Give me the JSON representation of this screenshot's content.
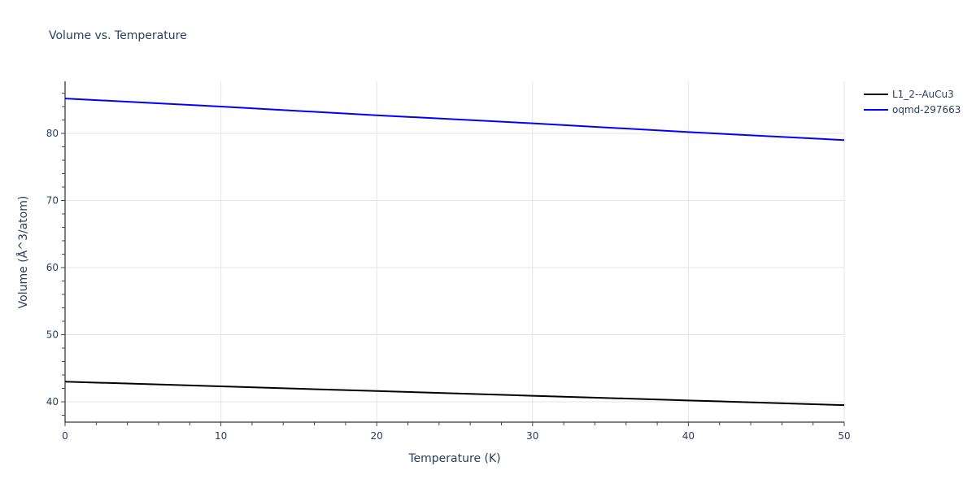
{
  "chart_data": {
    "type": "line",
    "title": "Volume vs. Temperature",
    "xlabel": "Temperature (K)",
    "ylabel": "Volume (Å^3/atom)",
    "xlim": [
      0,
      50
    ],
    "ylim": [
      36.97,
      87.76
    ],
    "x_ticks": [
      0,
      10,
      20,
      30,
      40,
      50
    ],
    "y_ticks": [
      40,
      50,
      60,
      70,
      80
    ],
    "x_minor_step": 2,
    "y_minor_step": 2,
    "grid": true,
    "legend_position": "top-right-outside",
    "x": [
      0,
      10,
      20,
      30,
      40,
      50
    ],
    "series": [
      {
        "name": "L1_2--AuCu3",
        "color": "#000000",
        "values": [
          43.0,
          42.3,
          41.6,
          40.9,
          40.2,
          39.5
        ]
      },
      {
        "name": "oqmd-297663",
        "color": "#0000ff",
        "values": [
          85.2,
          84.0,
          82.7,
          81.5,
          80.2,
          79.0
        ]
      }
    ]
  },
  "legend": {
    "items": [
      {
        "label": "L1_2--AuCu3",
        "color": "#000000"
      },
      {
        "label": "oqmd-297663",
        "color": "#0000ff"
      }
    ]
  }
}
